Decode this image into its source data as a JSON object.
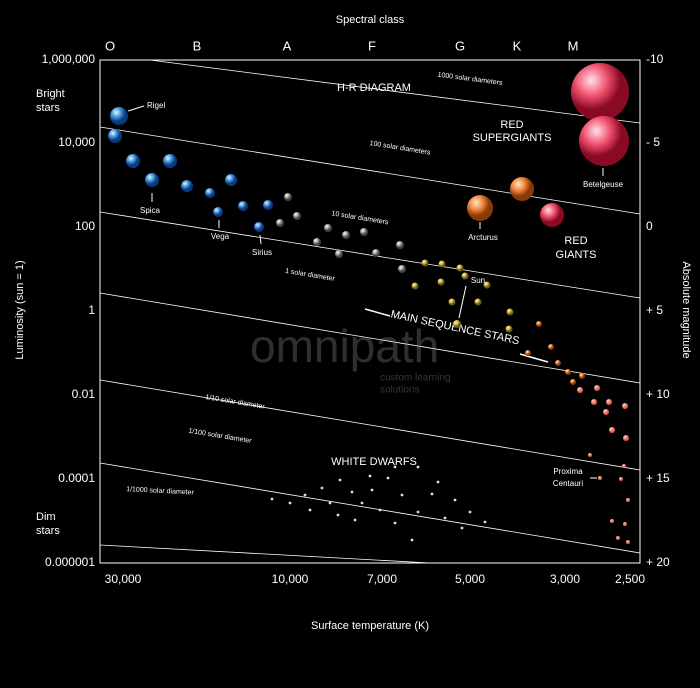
{
  "header": {
    "top_axis_title": "Spectral class",
    "title": "H-R DIAGRAM"
  },
  "spectral_classes": [
    "O",
    "B",
    "A",
    "F",
    "G",
    "K",
    "M"
  ],
  "left_axis": {
    "title": "Luminosity (sun = 1)",
    "ticks": [
      "1,000,000",
      "10,000",
      "100",
      "1",
      "0.01",
      "0.0001",
      "0.000001"
    ],
    "top_note": [
      "Bright",
      "stars"
    ],
    "bottom_note": [
      "Dim",
      "stars"
    ]
  },
  "right_axis": {
    "title": "Absolute magnitude",
    "ticks": [
      "-10",
      "- 5",
      "0",
      "+ 5",
      "+ 10",
      "+ 15",
      "+ 20"
    ]
  },
  "bottom_axis": {
    "title": "Surface temperature (K)",
    "ticks": [
      "30,000",
      "10,000",
      "7,000",
      "5,000",
      "3,000",
      "2,500"
    ]
  },
  "diameter_lines": [
    "1000 solar diameters",
    "100 solar diameters",
    "10 solar diameters",
    "1 solar diameter",
    "1/10 solar diameter",
    "1/100 solar diameter",
    "1/1000 solar diameter"
  ],
  "regions": {
    "red_supergiants": [
      "RED",
      "SUPERGIANTS"
    ],
    "red_giants": [
      "RED",
      "GIANTS"
    ],
    "main_sequence": "MAIN SEQUENCE STARS",
    "white_dwarfs": "WHITE DWARFS"
  },
  "star_labels": {
    "rigel": "Rigel",
    "spica": "Spica",
    "vega": "Vega",
    "sirius": "Sirius",
    "arcturus": "Arcturus",
    "betelgeuse": "Betelgeuse",
    "sun": "Sun",
    "proxima": [
      "Proxima",
      "Centauri"
    ]
  },
  "watermark": {
    "brand": "omnipath",
    "tagline": [
      "custom learning",
      "solutions"
    ]
  }
}
